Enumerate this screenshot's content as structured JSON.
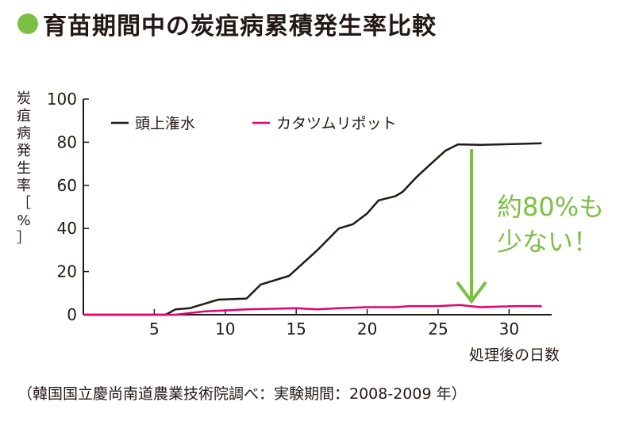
{
  "title": "育苗期間中の炭疽病累積発生率比較",
  "accent_color": "#7bc043",
  "source": "（韓国国立慶尚南道農業技術院調べ：実験期間：2008-2009 年）",
  "annotation": {
    "line1": "約80%も",
    "line2": "少ない！"
  },
  "chart_data": {
    "type": "line",
    "title": "育苗期間中の炭疽病累積発生率比較",
    "xlabel": "処理後の日数",
    "ylabel": "炭疽病発生率［%］",
    "xlim": [
      0,
      33
    ],
    "ylim": [
      0,
      100
    ],
    "xticks": [
      5,
      10,
      15,
      20,
      25,
      30
    ],
    "yticks": [
      0,
      20,
      40,
      60,
      80,
      100
    ],
    "legend_position": "top-left",
    "series": [
      {
        "name": "頭上潅水",
        "color": "#231815",
        "points": [
          [
            0,
            0
          ],
          [
            5.8,
            0
          ],
          [
            6.5,
            2.5
          ],
          [
            7.5,
            3
          ],
          [
            9.5,
            7
          ],
          [
            11.5,
            7.5
          ],
          [
            12.5,
            14
          ],
          [
            14.5,
            18
          ],
          [
            16.5,
            30
          ],
          [
            18,
            40
          ],
          [
            19,
            42
          ],
          [
            20,
            47
          ],
          [
            20.8,
            53
          ],
          [
            22,
            55
          ],
          [
            22.5,
            57
          ],
          [
            23.5,
            64
          ],
          [
            24.5,
            70
          ],
          [
            25.5,
            76
          ],
          [
            26.4,
            79
          ],
          [
            28,
            78.8
          ],
          [
            30.5,
            79.2
          ],
          [
            32.3,
            79.5
          ]
        ]
      },
      {
        "name": "カタツムリポット",
        "color": "#e4006e",
        "points": [
          [
            0,
            0
          ],
          [
            6.5,
            0
          ],
          [
            8.5,
            1.5
          ],
          [
            11.5,
            2.5
          ],
          [
            15,
            3
          ],
          [
            16.5,
            2.5
          ],
          [
            18,
            3
          ],
          [
            20,
            3.5
          ],
          [
            22,
            3.5
          ],
          [
            23,
            4
          ],
          [
            25,
            4
          ],
          [
            26.5,
            4.5
          ],
          [
            28,
            3.5
          ],
          [
            30.5,
            4
          ],
          [
            32.3,
            4
          ]
        ]
      }
    ]
  }
}
